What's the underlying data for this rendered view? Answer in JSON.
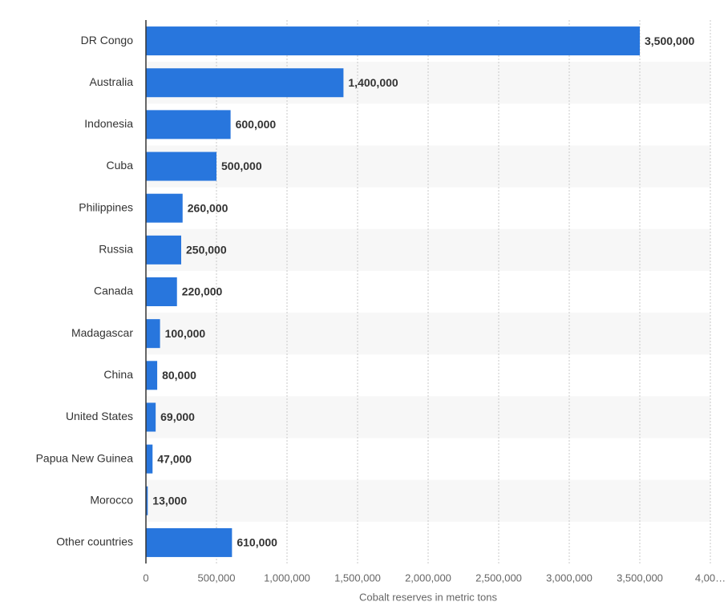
{
  "chart_data": {
    "type": "bar",
    "orientation": "horizontal",
    "x_label": "Cobalt reserves in metric tons",
    "categories": [
      "DR Congo",
      "Australia",
      "Indonesia",
      "Cuba",
      "Philippines",
      "Russia",
      "Canada",
      "Madagascar",
      "China",
      "United States",
      "Papua New Guinea",
      "Morocco",
      "Other countries"
    ],
    "values": [
      3500000,
      1400000,
      600000,
      500000,
      260000,
      250000,
      220000,
      100000,
      80000,
      69000,
      47000,
      13000,
      610000
    ],
    "value_labels": [
      "3,500,000",
      "1,400,000",
      "600,000",
      "500,000",
      "260,000",
      "250,000",
      "220,000",
      "100,000",
      "80,000",
      "69,000",
      "47,000",
      "13,000",
      "610,000"
    ],
    "color": "#2876dd",
    "xlim": [
      0,
      4000000
    ],
    "xticks": [
      0,
      {
        "value": 500000,
        "label": "500,000"
      },
      {
        "value": 1000000,
        "label": "1,000,000"
      },
      {
        "value": 1500000,
        "label": "1,500,000"
      },
      {
        "value": 2000000,
        "label": "2,000,000"
      },
      {
        "value": 2500000,
        "label": "2,500,000"
      },
      {
        "value": 3000000,
        "label": "3,000,000"
      },
      {
        "value": 3500000,
        "label": "3,500,000"
      },
      {
        "value": 4000000,
        "label": "4,00…"
      }
    ],
    "grid": true
  }
}
